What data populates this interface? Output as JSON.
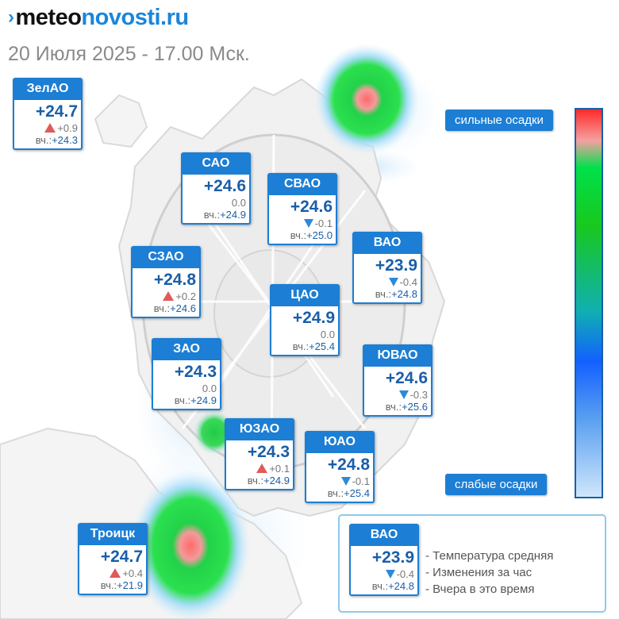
{
  "header": {
    "logo_prefix": "meteo",
    "logo_brand": "novosti.ru",
    "date_line": "20 Июля 2025 - 17.00 Мск."
  },
  "districts": [
    {
      "name": "ЗелАО",
      "temp": "+24.7",
      "change": "+0.9",
      "trend": "up",
      "yest_label": "вч.:",
      "yest": "+24.3"
    },
    {
      "name": "САО",
      "temp": "+24.6",
      "change": "0.0",
      "trend": "none",
      "yest_label": "вч.:",
      "yest": "+24.9"
    },
    {
      "name": "СВАО",
      "temp": "+24.6",
      "change": "-0.1",
      "trend": "down",
      "yest_label": "вч.:",
      "yest": "+25.0"
    },
    {
      "name": "ВАО",
      "temp": "+23.9",
      "change": "-0.4",
      "trend": "down",
      "yest_label": "вч.:",
      "yest": "+24.8"
    },
    {
      "name": "СЗАО",
      "temp": "+24.8",
      "change": "+0.2",
      "trend": "up",
      "yest_label": "вч.:",
      "yest": "+24.6"
    },
    {
      "name": "ЦАО",
      "temp": "+24.9",
      "change": "0.0",
      "trend": "none",
      "yest_label": "вч.:",
      "yest": "+25.4"
    },
    {
      "name": "ЗАО",
      "temp": "+24.3",
      "change": "0.0",
      "trend": "none",
      "yest_label": "вч.:",
      "yest": "+24.9"
    },
    {
      "name": "ЮВАО",
      "temp": "+24.6",
      "change": "-0.3",
      "trend": "down",
      "yest_label": "вч.:",
      "yest": "+25.6"
    },
    {
      "name": "ЮЗАО",
      "temp": "+24.3",
      "change": "+0.1",
      "trend": "up",
      "yest_label": "вч.:",
      "yest": "+24.9"
    },
    {
      "name": "ЮАО",
      "temp": "+24.8",
      "change": "-0.1",
      "trend": "down",
      "yest_label": "вч.:",
      "yest": "+25.4"
    },
    {
      "name": "Троицк",
      "temp": "+24.7",
      "change": "+0.4",
      "trend": "up",
      "yest_label": "вч.:",
      "yest": "+21.9"
    }
  ],
  "scale": {
    "top_label": "сильные осадки",
    "bottom_label": "слабые осадки",
    "colors": [
      "#ff2a2a",
      "#f5a0a0",
      "#00e04a",
      "#19c81e",
      "#10b0b0",
      "#1260ff",
      "#5aa0f0",
      "#cfe6fb"
    ]
  },
  "legend": {
    "sample": {
      "name": "ВАО",
      "temp": "+23.9",
      "change": "-0.4",
      "trend": "down",
      "yest_label": "вч.:",
      "yest": "+24.8"
    },
    "lines": [
      "- Температура средняя",
      "- Изменения за час",
      "- Вчера в это время"
    ]
  }
}
